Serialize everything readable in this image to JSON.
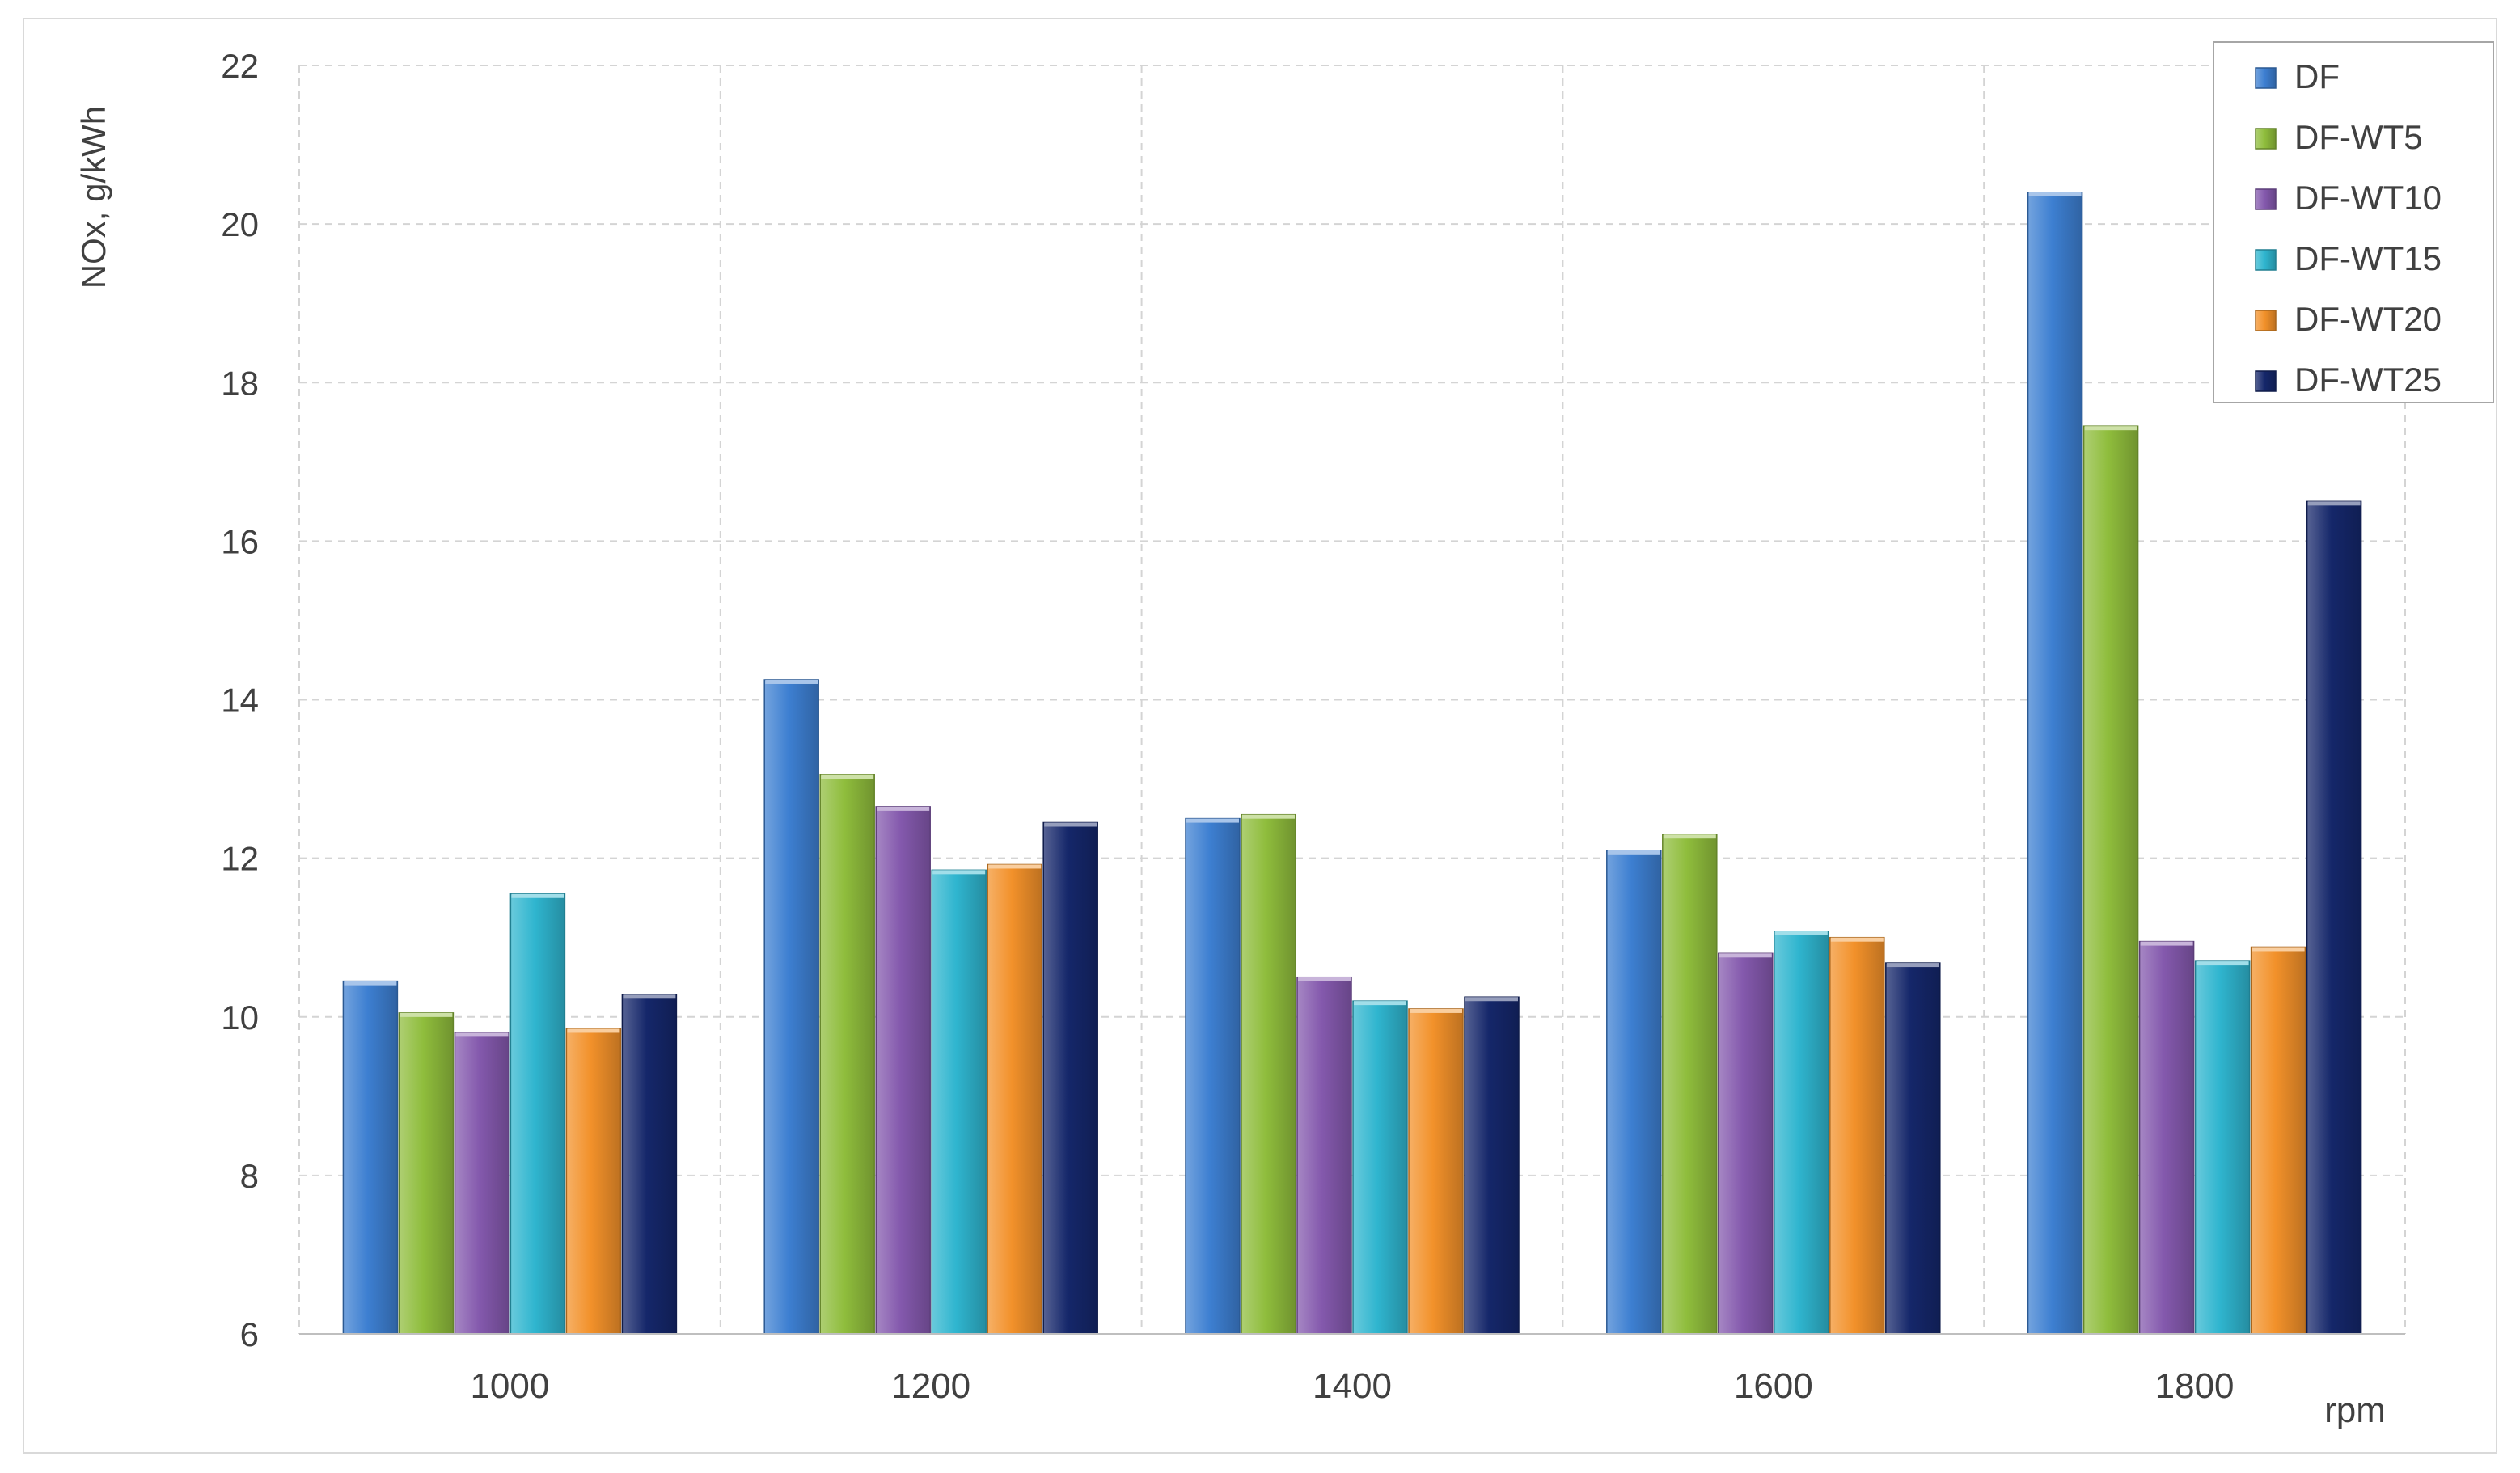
{
  "chart_data": {
    "type": "bar",
    "title": "",
    "xlabel": "rpm",
    "ylabel": "NOx, g/kWh",
    "categories": [
      "1000",
      "1200",
      "1400",
      "1600",
      "1800"
    ],
    "ylim": [
      6,
      22
    ],
    "yticks": [
      6,
      8,
      10,
      12,
      14,
      16,
      18,
      20,
      22
    ],
    "grid": true,
    "legend_position": "top-right",
    "series": [
      {
        "name": "DF",
        "color": "#3d7fd1",
        "values": [
          10.45,
          14.25,
          12.5,
          12.1,
          20.4
        ]
      },
      {
        "name": "DF-WT5",
        "color": "#8fbd3c",
        "values": [
          10.05,
          13.05,
          12.55,
          12.3,
          17.45
        ]
      },
      {
        "name": "DF-WT10",
        "color": "#8459ad",
        "values": [
          9.8,
          12.65,
          10.5,
          10.8,
          10.95
        ]
      },
      {
        "name": "DF-WT15",
        "color": "#2fb5cf",
        "values": [
          11.55,
          11.85,
          10.2,
          11.08,
          10.7
        ]
      },
      {
        "name": "DF-WT20",
        "color": "#f2912a",
        "values": [
          9.85,
          11.92,
          10.1,
          11.0,
          10.88
        ]
      },
      {
        "name": "DF-WT25",
        "color": "#15276a",
        "values": [
          10.28,
          12.45,
          10.25,
          10.68,
          16.5
        ]
      }
    ]
  }
}
